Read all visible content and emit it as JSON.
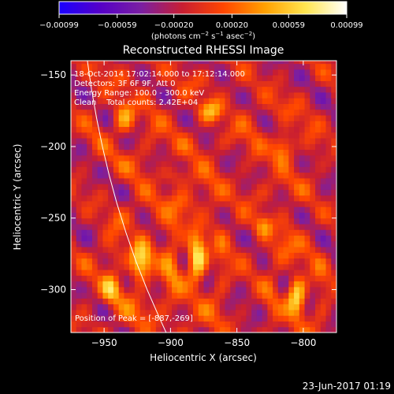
{
  "chart_data": {
    "type": "heatmap",
    "title": "Reconstructed RHESSI Image",
    "xlabel": "Heliocentric X (arcsec)",
    "ylabel": "Heliocentric Y (arcsec)",
    "xlim": [
      -975,
      -775
    ],
    "ylim": [
      -330,
      -140
    ],
    "x_ticks": [
      {
        "value": -950,
        "label": "−950"
      },
      {
        "value": -900,
        "label": "−900"
      },
      {
        "value": -850,
        "label": "−850"
      },
      {
        "value": -800,
        "label": "−800"
      }
    ],
    "y_ticks": [
      {
        "value": -150,
        "label": "−150"
      },
      {
        "value": -200,
        "label": "−200"
      },
      {
        "value": -250,
        "label": "−250"
      },
      {
        "value": -300,
        "label": "−300"
      }
    ],
    "colorbar": {
      "min": -0.00099,
      "max": 0.00099,
      "ticks": [
        {
          "value": -0.00099,
          "label": "−0.00099"
        },
        {
          "value": -0.00059,
          "label": "−0.00059"
        },
        {
          "value": -0.0002,
          "label": "−0.00020"
        },
        {
          "value": 0.0002,
          "label": "0.00020"
        },
        {
          "value": 0.00059,
          "label": "0.00059"
        },
        {
          "value": 0.00099,
          "label": "0.00099"
        }
      ],
      "unit_base": "(photons cm",
      "unit_sup1": "−2",
      "unit_mid": " s",
      "unit_sup2": "−1",
      "unit_mid2": " asec",
      "unit_sup3": "−2",
      "unit_end": ")"
    },
    "annotations": [
      "18-Oct-2014 17:02:14.000 to 17:12:14.000",
      "Detectors: 3F 6F 9F, Att 0",
      "Energy Range: 100.0 - 300.0 keV",
      "Clean    Total counts: 2.42E+04"
    ],
    "peak_label": "Position of Peak = [-887,-269]",
    "peak": {
      "x": -887,
      "y": -269
    },
    "limb_points": [
      [
        -962.6,
        -140
      ],
      [
        -959.5,
        -160
      ],
      [
        -955.7,
        -180
      ],
      [
        -951.3,
        -200
      ],
      [
        -946.2,
        -220
      ],
      [
        -940.3,
        -240
      ],
      [
        -933.6,
        -260
      ],
      [
        -926.1,
        -280
      ],
      [
        -917.6,
        -300
      ],
      [
        -908.2,
        -320
      ],
      [
        -903.3,
        -330
      ]
    ],
    "sources": [
      {
        "x": -922,
        "y": -280,
        "amp": 0.00085,
        "sx": 14,
        "sy": 22
      },
      {
        "x": -880,
        "y": -278,
        "amp": 0.00099,
        "sx": 12,
        "sy": 28
      },
      {
        "x": -805,
        "y": -305,
        "amp": 0.0009,
        "sx": 12,
        "sy": 24
      },
      {
        "x": -935,
        "y": -180,
        "amp": 0.0006,
        "sx": 14,
        "sy": 20
      },
      {
        "x": -870,
        "y": -175,
        "amp": 0.00055,
        "sx": 16,
        "sy": 14
      },
      {
        "x": -815,
        "y": -200,
        "amp": 0.0006,
        "sx": 14,
        "sy": 18
      },
      {
        "x": -830,
        "y": -255,
        "amp": 0.00045,
        "sx": 12,
        "sy": 14
      },
      {
        "x": -895,
        "y": -220,
        "amp": 0.0003,
        "sx": 18,
        "sy": 12
      },
      {
        "x": -945,
        "y": -300,
        "amp": 0.0005,
        "sx": 12,
        "sy": 16
      }
    ],
    "colormap_stops": [
      "#1a00ff",
      "#5500c8",
      "#7b1fa2",
      "#c81e32",
      "#ff4600",
      "#ffa000",
      "#ffe650",
      "#ffffff"
    ]
  },
  "timestamp": "23-Jun-2017 01:19"
}
